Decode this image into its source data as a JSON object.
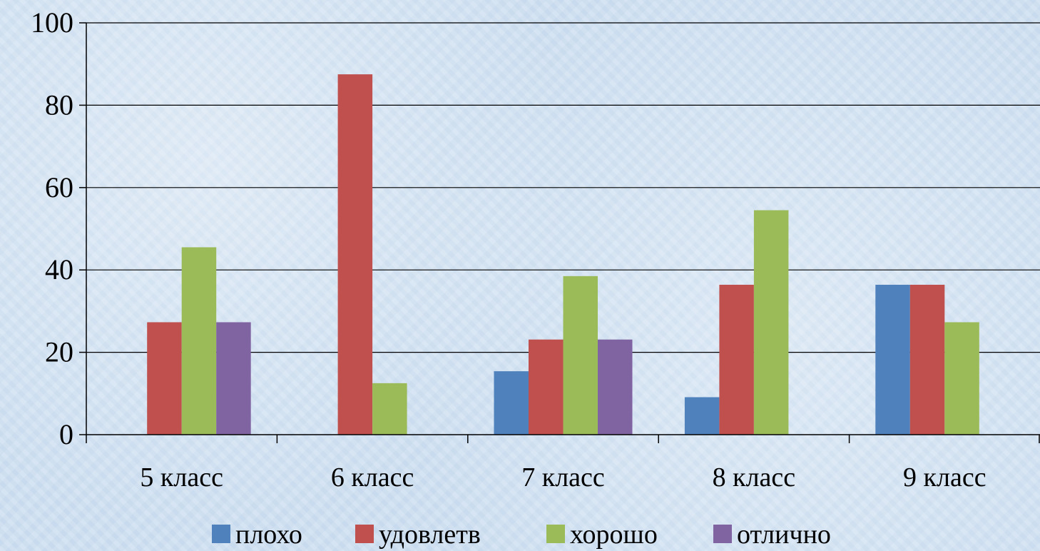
{
  "chart_data": {
    "type": "bar",
    "categories": [
      "5 класс",
      "6 класс",
      "7 класс",
      "8 класс",
      "9 класс"
    ],
    "series": [
      {
        "name": "плохо",
        "color": "#4f81bd",
        "values": [
          0,
          0,
          15.4,
          9.1,
          36.4
        ]
      },
      {
        "name": "удовлетв",
        "color": "#c0504d",
        "values": [
          27.3,
          87.5,
          23.1,
          36.4,
          36.4
        ]
      },
      {
        "name": "хорошо",
        "color": "#9bbb59",
        "values": [
          45.5,
          12.5,
          38.5,
          54.5,
          27.3
        ]
      },
      {
        "name": "отлично",
        "color": "#8064a2",
        "values": [
          27.3,
          0,
          23.1,
          0,
          0
        ]
      }
    ],
    "ylim": [
      0,
      100
    ],
    "yticks": [
      0,
      20,
      40,
      60,
      80,
      100
    ],
    "grid": true,
    "legend": "bottom",
    "title": "",
    "xlabel": "",
    "ylabel": ""
  }
}
